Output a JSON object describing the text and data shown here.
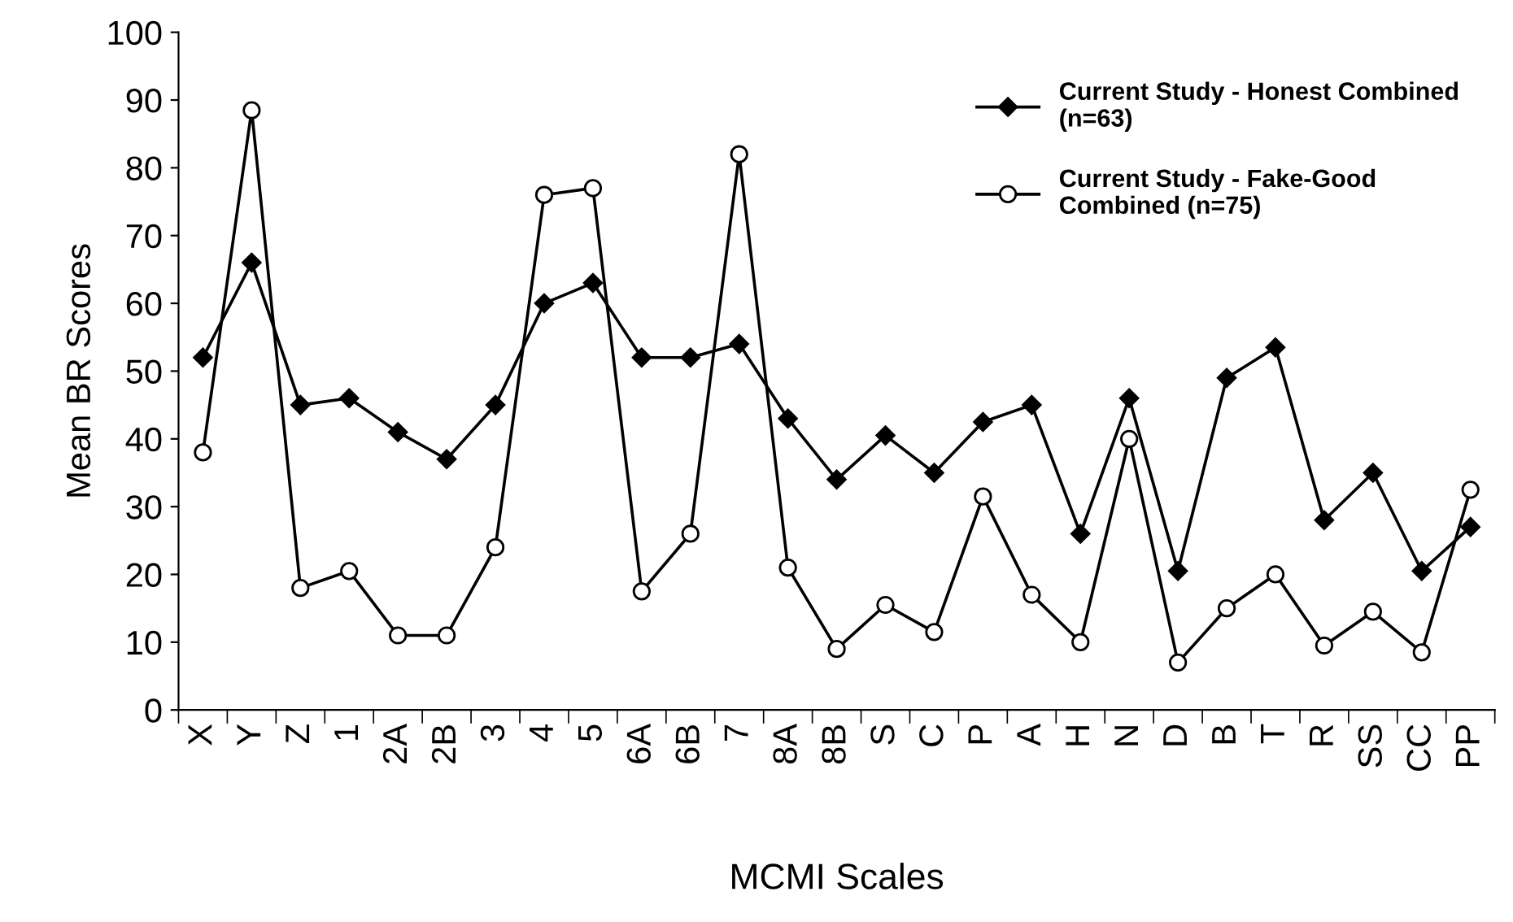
{
  "chart_data": {
    "type": "line",
    "xlabel": "MCMI Scales",
    "ylabel": "Mean BR Scores",
    "categories": [
      "X",
      "Y",
      "Z",
      "1",
      "2A",
      "2B",
      "3",
      "4",
      "5",
      "6A",
      "6B",
      "7",
      "8A",
      "8B",
      "S",
      "C",
      "P",
      "A",
      "H",
      "N",
      "D",
      "B",
      "T",
      "R",
      "SS",
      "CC",
      "PP"
    ],
    "series": [
      {
        "name": "Current Study - Honest Combined\n(n=63)",
        "color": "#000000",
        "marker": "diamond",
        "values": [
          52,
          66,
          45,
          46,
          41,
          37,
          45,
          60,
          63,
          52,
          52,
          54,
          43,
          34,
          40.5,
          35,
          42.5,
          45,
          26,
          46,
          20.5,
          49,
          53.5,
          28,
          35,
          20.5,
          27
        ]
      },
      {
        "name": "Current Study - Fake-Good\nCombined (n=75)",
        "color": "#000000",
        "marker": "circle",
        "values": [
          38,
          88.5,
          18,
          20.5,
          11,
          11,
          24,
          76,
          77,
          17.5,
          26,
          82,
          21,
          9,
          15.5,
          11.5,
          31.5,
          17,
          10,
          40,
          7,
          15,
          20,
          9.5,
          14.5,
          8.5,
          32.5
        ]
      }
    ],
    "ylim": [
      0,
      100
    ],
    "yticks": [
      0,
      10,
      20,
      30,
      40,
      50,
      60,
      70,
      80,
      90,
      100
    ],
    "grid": false,
    "legend": "top right",
    "line_style": "solid"
  }
}
